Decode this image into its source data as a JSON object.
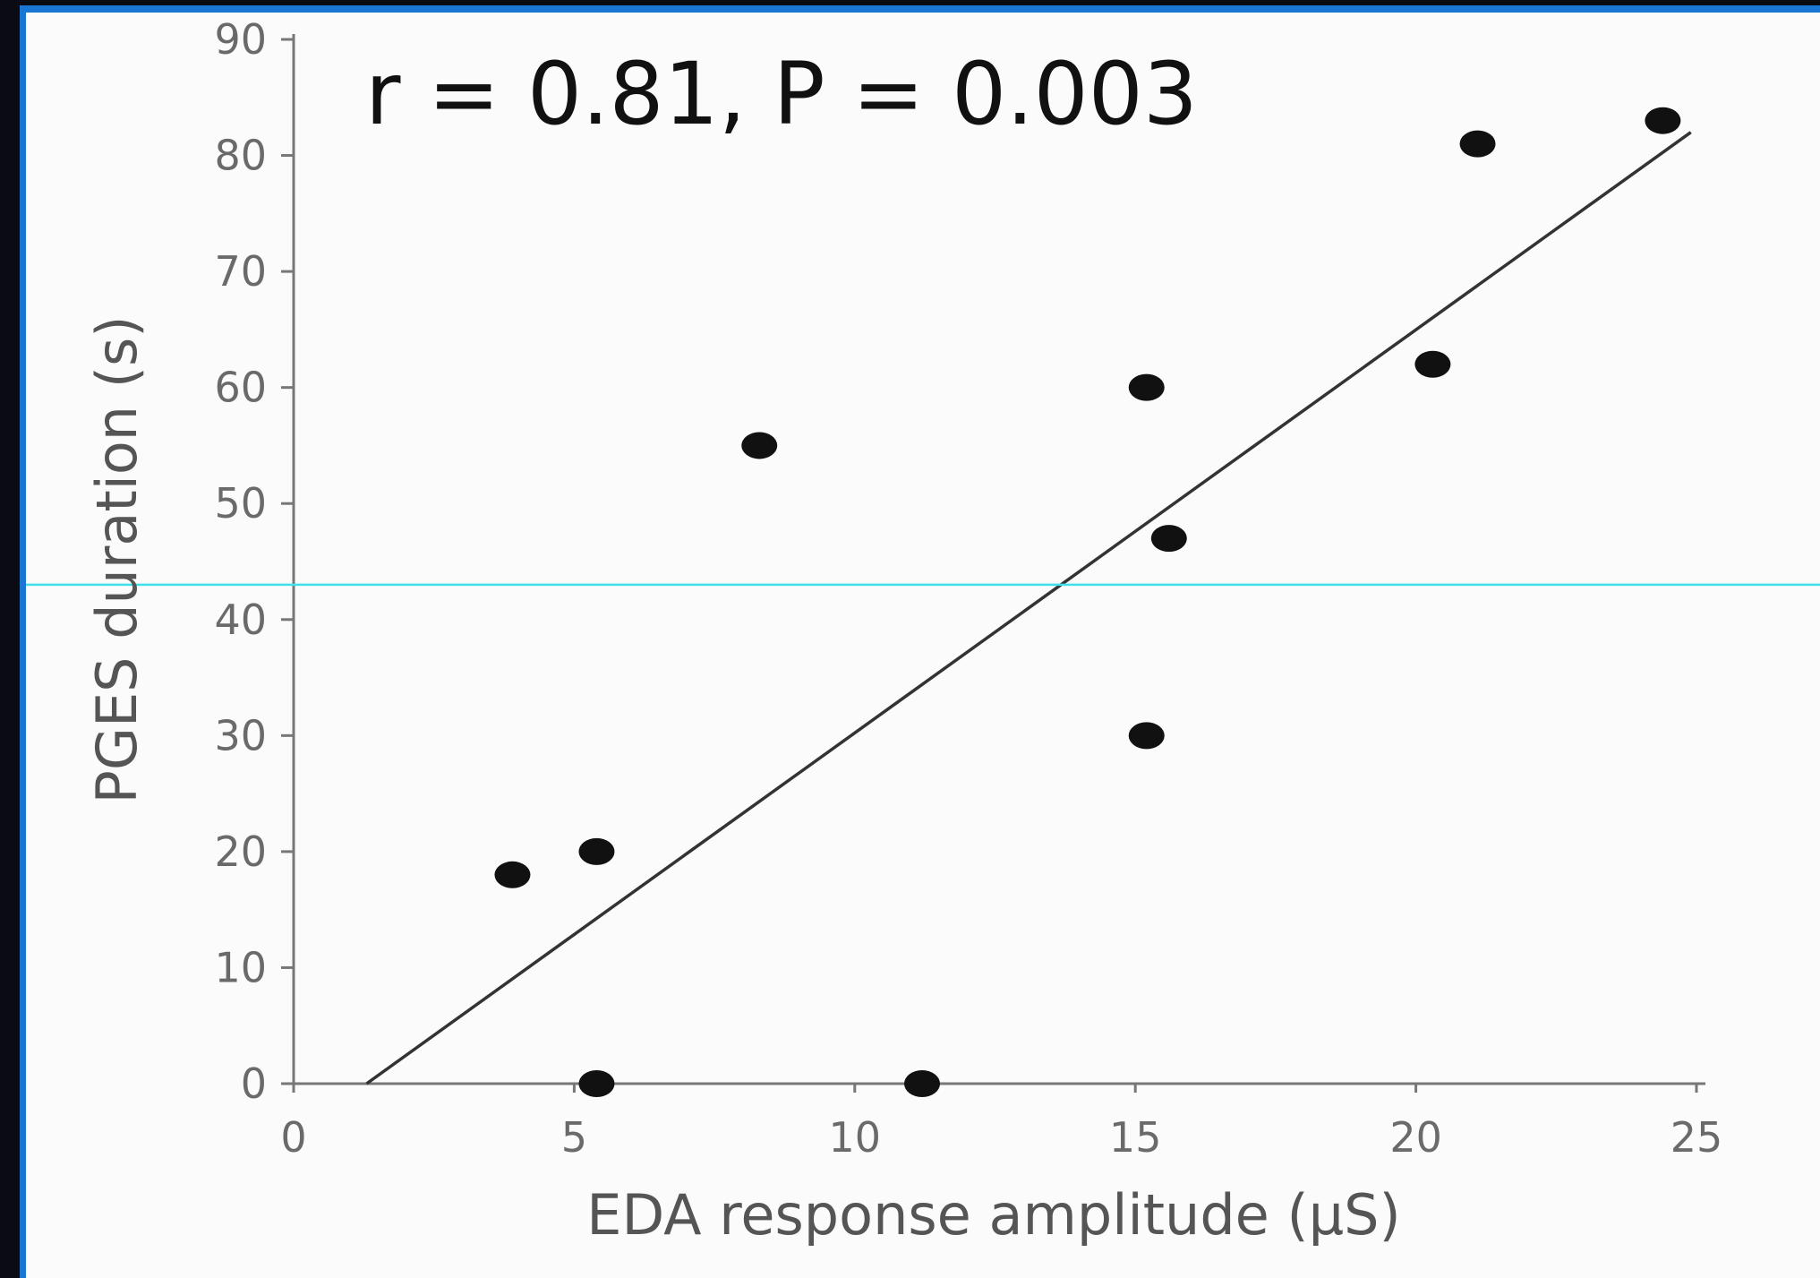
{
  "colors": {
    "frame_dark": "#0b0b14",
    "frame_blue": "#1976d2",
    "panel_bg": "#fbfbfb",
    "points": "#111111",
    "fit_line": "#333333",
    "guide_line": "#3fe0e8",
    "axis": "#777777"
  },
  "chart_data": {
    "type": "scatter",
    "title": "",
    "annotation": "r = 0.81, P = 0.003",
    "xlabel": "EDA response amplitude (μS)",
    "ylabel": "PGES duration (s)",
    "xlim": [
      0,
      25
    ],
    "ylim": [
      0,
      90
    ],
    "x_ticks": [
      "0",
      "5",
      "10",
      "15",
      "20",
      "25"
    ],
    "y_ticks": [
      "0",
      "10",
      "20",
      "30",
      "40",
      "50",
      "60",
      "70",
      "80",
      "90"
    ],
    "grid": false,
    "points": [
      {
        "x": 3.9,
        "y": 18
      },
      {
        "x": 5.4,
        "y": 20
      },
      {
        "x": 5.4,
        "y": 0
      },
      {
        "x": 8.3,
        "y": 55
      },
      {
        "x": 11.2,
        "y": 0
      },
      {
        "x": 15.2,
        "y": 60
      },
      {
        "x": 15.6,
        "y": 47
      },
      {
        "x": 15.2,
        "y": 30
      },
      {
        "x": 20.3,
        "y": 62
      },
      {
        "x": 21.1,
        "y": 81
      },
      {
        "x": 24.4,
        "y": 83
      }
    ],
    "fit_line": {
      "x": [
        1.3,
        24.9
      ],
      "y": [
        0,
        82
      ]
    },
    "guide_line_y": 43
  }
}
